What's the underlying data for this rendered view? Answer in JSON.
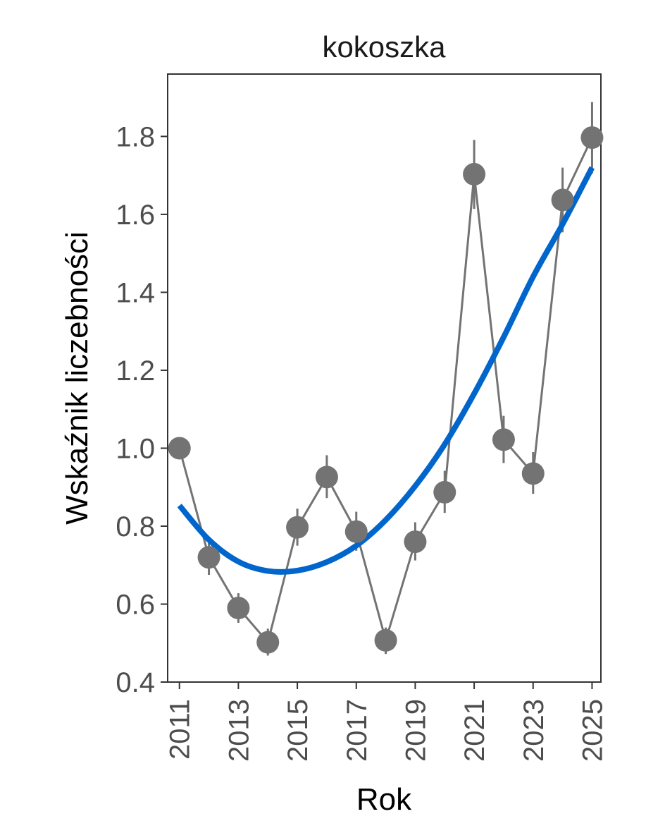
{
  "chart_data": {
    "type": "line",
    "title": "kokoszka",
    "xlabel": "Rok",
    "ylabel": "Wskaźnik liczebności",
    "x_ticks": [
      "2011",
      "2013",
      "2015",
      "2017",
      "2019",
      "2021",
      "2023",
      "2025"
    ],
    "y_ticks": [
      "0.4",
      "0.6",
      "0.8",
      "1.0",
      "1.2",
      "1.4",
      "1.6",
      "1.8"
    ],
    "xlim": [
      2010.6,
      2025.3
    ],
    "ylim": [
      0.4,
      1.96
    ],
    "grid": false,
    "series": [
      {
        "kind": "points-with-errorbars",
        "color": "#737373",
        "x": [
          2011,
          2012,
          2013,
          2014,
          2015,
          2016,
          2017,
          2018,
          2019,
          2020,
          2021,
          2022,
          2023,
          2024,
          2025
        ],
        "y": [
          1.0,
          0.72,
          0.59,
          0.502,
          0.797,
          0.926,
          0.786,
          0.507,
          0.76,
          0.887,
          1.703,
          1.022,
          0.935,
          1.637,
          1.797
        ],
        "y_low": [
          1.0,
          0.675,
          0.552,
          0.468,
          0.75,
          0.872,
          0.737,
          0.472,
          0.712,
          0.834,
          1.614,
          0.962,
          0.883,
          1.554,
          1.705
        ],
        "y_high": [
          1.0,
          0.765,
          0.628,
          0.537,
          0.845,
          0.982,
          0.837,
          0.54,
          0.81,
          0.942,
          1.791,
          1.083,
          0.99,
          1.72,
          1.888
        ]
      },
      {
        "kind": "trend",
        "color": "#0066cc",
        "x": [
          2011,
          2012,
          2013,
          2014,
          2015,
          2016,
          2017,
          2018,
          2019,
          2020,
          2021,
          2022,
          2023,
          2024,
          2025
        ],
        "y": [
          0.853,
          0.765,
          0.709,
          0.685,
          0.686,
          0.708,
          0.75,
          0.816,
          0.903,
          1.01,
          1.14,
          1.285,
          1.44,
          1.575,
          1.72
        ]
      }
    ]
  }
}
